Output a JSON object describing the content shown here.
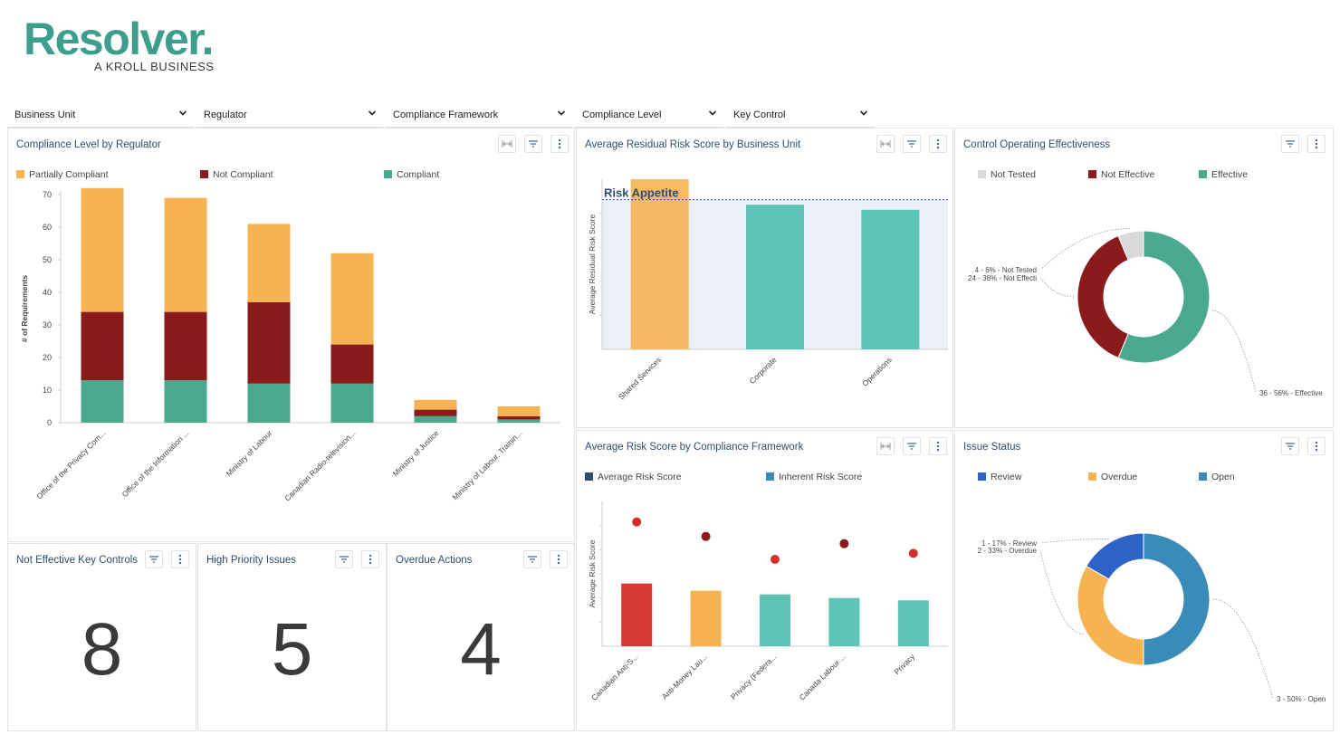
{
  "logo": {
    "name": "Resolver.",
    "tagline": "A KROLL BUSINESS"
  },
  "filters": [
    "Business Unit",
    "Regulator",
    "Compliance Framework",
    "Compliance Level",
    "Key Control"
  ],
  "panels": {
    "compliance_by_regulator": {
      "title": "Compliance Level by Regulator"
    },
    "residual_risk": {
      "title": "Average Residual Risk Score by Business Unit"
    },
    "control_effectiveness": {
      "title": "Control Operating Effectiveness"
    },
    "risk_by_framework": {
      "title": "Average Risk Score by Compliance Framework"
    },
    "issue_status": {
      "title": "Issue Status"
    },
    "not_effective_controls": {
      "title": "Not Effective Key Controls",
      "value": "8"
    },
    "high_priority_issues": {
      "title": "High Priority Issues",
      "value": "5"
    },
    "overdue_actions": {
      "title": "Overdue Actions",
      "value": "4"
    }
  },
  "colors": {
    "partially_compliant": "#f5b352",
    "not_compliant": "#8b1a1a",
    "compliant": "#4aa88e",
    "teal": "#5ec4b6",
    "orange": "#f5b352",
    "red": "#d83a34",
    "dark_red": "#8b1a1a",
    "not_tested": "#d9d9d9",
    "review": "#2e62c4",
    "open": "#3a8bb8",
    "title_blue": "#2e4e6e"
  },
  "icons": {
    "filter": "filter-icon",
    "more": "more-vertical-icon",
    "expand": "expand-icon",
    "chevron": "chevron-down-icon"
  },
  "chart_data": [
    {
      "id": "compliance_by_regulator",
      "type": "bar",
      "stacked": true,
      "title": "Compliance Level by Regulator",
      "ylabel": "# of Requirements",
      "ylim": [
        0,
        70
      ],
      "yticks": [
        0,
        10,
        20,
        30,
        40,
        50,
        60,
        70
      ],
      "legend": "top",
      "categories": [
        "Office of the Privacy Com...",
        "Office of the Information ...",
        "Ministry of Labour",
        "Canadian Radio-television...",
        "Ministry of Justice",
        "Ministry of Labour, Trainin..."
      ],
      "series": [
        {
          "name": "Compliant",
          "values": [
            13,
            13,
            12,
            12,
            2,
            1
          ]
        },
        {
          "name": "Not Compliant",
          "values": [
            21,
            21,
            25,
            12,
            2,
            1
          ]
        },
        {
          "name": "Partially Compliant",
          "values": [
            38,
            35,
            24,
            28,
            3,
            3
          ]
        }
      ],
      "legend_order": [
        "Partially Compliant",
        "Not Compliant",
        "Compliant"
      ]
    },
    {
      "id": "residual_risk",
      "type": "bar",
      "title": "Average Residual Risk Score by Business Unit",
      "ylabel": "Average Residual Risk Score",
      "ylim": [
        0,
        10
      ],
      "categories": [
        "Shared Services",
        "Corporate",
        "Operations"
      ],
      "values": [
        10,
        8.5,
        8.2
      ],
      "annotation": {
        "label": "Risk Appetite",
        "value": 8.8
      }
    },
    {
      "id": "control_effectiveness",
      "type": "pie",
      "donut": true,
      "title": "Control Operating Effectiveness",
      "legend": [
        "Not Tested",
        "Not Effective",
        "Effective"
      ],
      "slices": [
        {
          "name": "Effective",
          "value": 36,
          "label": "36 - 56% - Effective"
        },
        {
          "name": "Not Effective",
          "value": 24,
          "label": "24 - 38% - Not Effecti"
        },
        {
          "name": "Not Tested",
          "value": 4,
          "label": "4 - 6% - Not Tested"
        }
      ]
    },
    {
      "id": "risk_by_framework",
      "type": "bar",
      "title": "Average Risk Score by Compliance Framework",
      "ylabel": "Average Risk Score",
      "ylim": [
        0,
        10
      ],
      "categories": [
        "Canadian Anti-S...",
        "Anti-Money Lau...",
        "Privacy (Federa...",
        "Canada Labour ...",
        "Privacy"
      ],
      "series": [
        {
          "name": "Average Risk Score",
          "values": [
            5.2,
            4.6,
            4.3,
            4.0,
            3.8
          ]
        },
        {
          "name": "Inherent Risk Score",
          "values": [
            10.3,
            9.1,
            7.2,
            8.5,
            7.7
          ]
        }
      ]
    },
    {
      "id": "issue_status",
      "type": "pie",
      "donut": true,
      "title": "Issue Status",
      "legend": [
        "Review",
        "Overdue",
        "Open"
      ],
      "slices": [
        {
          "name": "Open",
          "value": 3,
          "label": "3 - 50% - Open"
        },
        {
          "name": "Overdue",
          "value": 2,
          "label": "2 - 33% - Overdue"
        },
        {
          "name": "Review",
          "value": 1,
          "label": "1 - 17% - Review"
        }
      ]
    }
  ]
}
